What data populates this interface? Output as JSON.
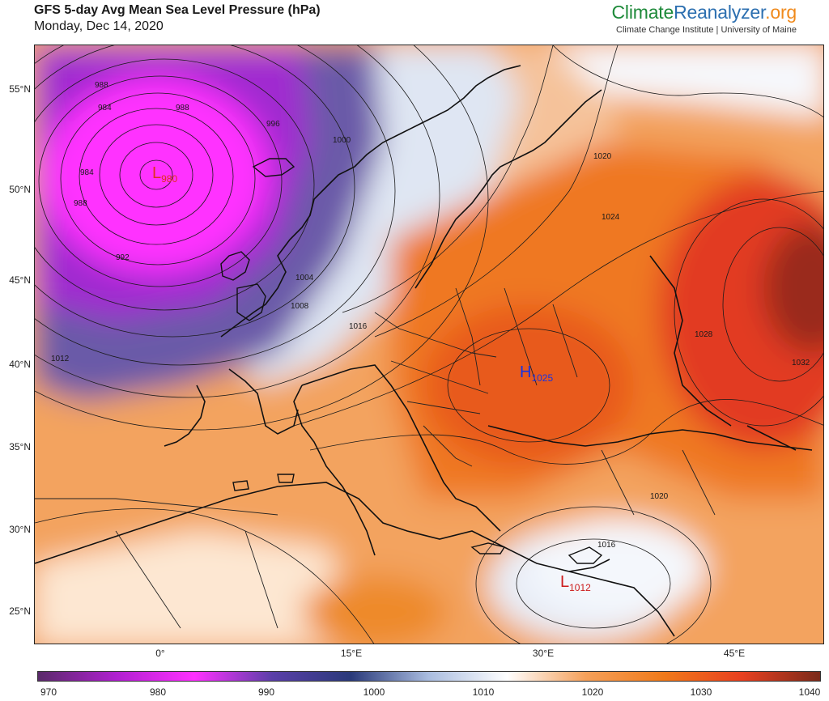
{
  "header": {
    "title": "GFS 5-day Avg Mean Sea Level Pressure (hPa)",
    "date": "Monday, Dec 14, 2020"
  },
  "brand": {
    "part1": "Climate",
    "part2": "Reanalyzer",
    "part3": ".org",
    "subtitle": "Climate Change Institute | University of Maine",
    "colors": {
      "part1": "#1e8a3a",
      "part2": "#2c6fb0",
      "part3": "#f08a1c"
    }
  },
  "axes": {
    "latitudes": [
      "55°N",
      "50°N",
      "45°N",
      "40°N",
      "35°N",
      "30°N",
      "25°N"
    ],
    "longitudes": [
      "0°",
      "15°E",
      "30°E",
      "45°E"
    ]
  },
  "centers": [
    {
      "letter": "L",
      "value": "980",
      "color": "#e03020"
    },
    {
      "letter": "H",
      "value": "1025",
      "color": "#1a33e0"
    },
    {
      "letter": "L",
      "value": "1012",
      "color": "#cc1a1a"
    }
  ],
  "isobar_labels": [
    "988",
    "984",
    "988",
    "984",
    "988",
    "992",
    "996",
    "1000",
    "1004",
    "1008",
    "1012",
    "1016",
    "1020",
    "1024",
    "1028",
    "1032",
    "1020",
    "1016"
  ],
  "colorbar": {
    "ticks": [
      "970",
      "980",
      "990",
      "1000",
      "1010",
      "1020",
      "1030",
      "1040"
    ],
    "stops": [
      "#5a2a6a",
      "#b020d0",
      "#ff30ff",
      "#5a3fa8",
      "#2a3a7a",
      "#aabde0",
      "#ffffff",
      "#f5a05a",
      "#f07a1a",
      "#e84020",
      "#7a2a1a"
    ]
  }
}
